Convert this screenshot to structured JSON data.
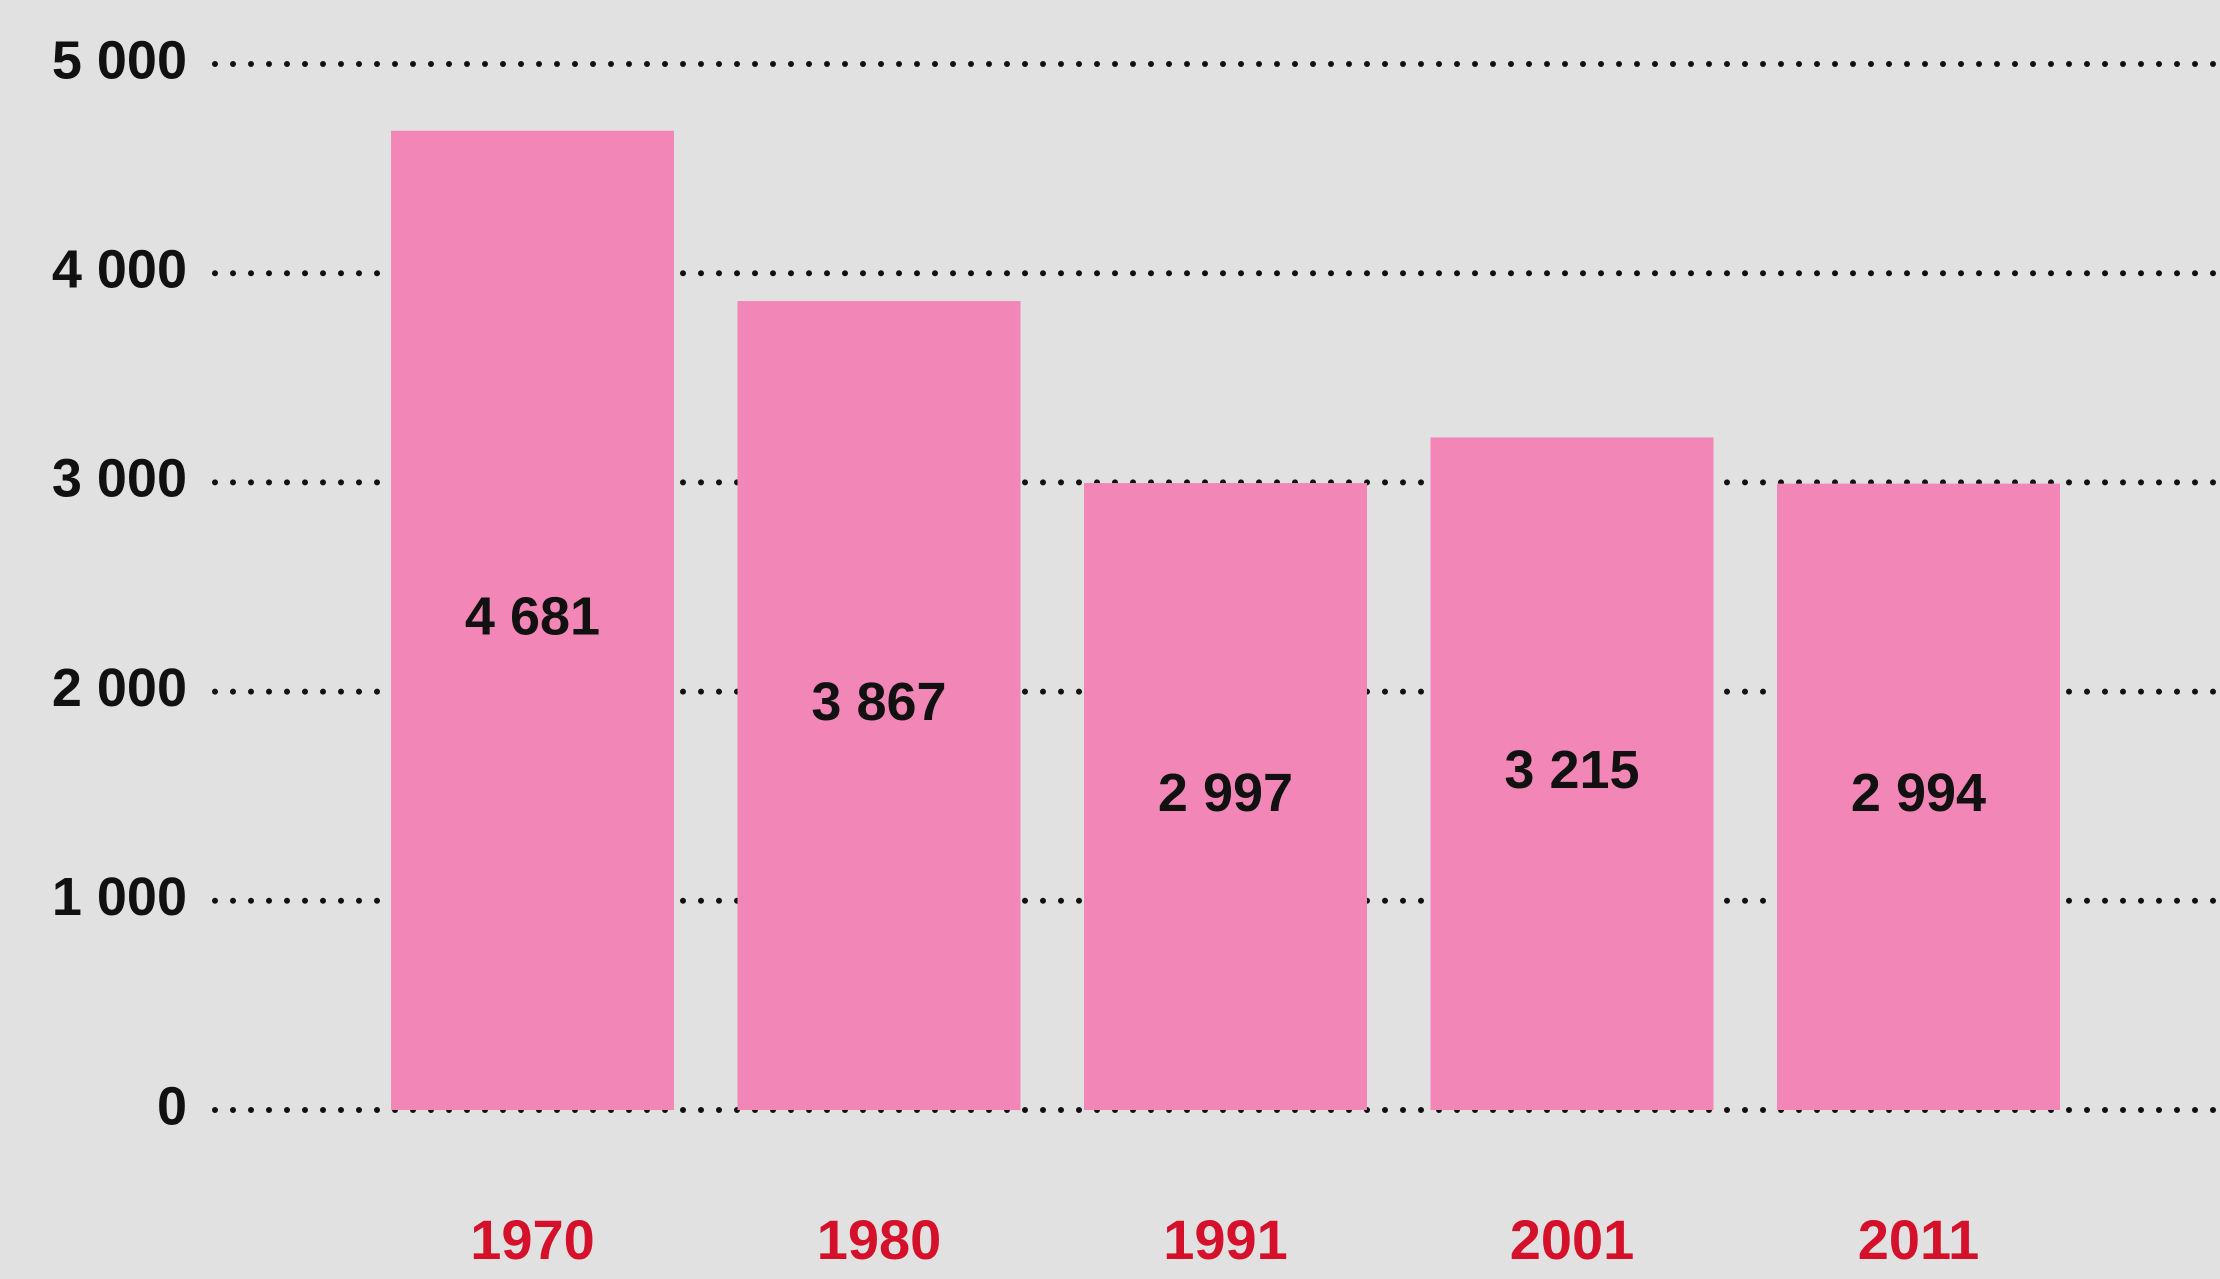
{
  "chart_data": {
    "type": "bar",
    "categories": [
      "1970",
      "1980",
      "1991",
      "2001",
      "2011"
    ],
    "values": [
      4681,
      3867,
      2997,
      3215,
      2994
    ],
    "value_labels": [
      "4 681",
      "3 867",
      "2 997",
      "3 215",
      "2 994"
    ],
    "color": "#f287b7",
    "ylim": [
      0,
      5000
    ],
    "yticks": [
      {
        "value": 0,
        "label": "0"
      },
      {
        "value": 1000,
        "label": "1 000"
      },
      {
        "value": 2000,
        "label": "2 000"
      },
      {
        "value": 3000,
        "label": "3 000"
      },
      {
        "value": 4000,
        "label": "4 000"
      },
      {
        "value": 5000,
        "label": "5 000"
      }
    ],
    "grid": true
  }
}
